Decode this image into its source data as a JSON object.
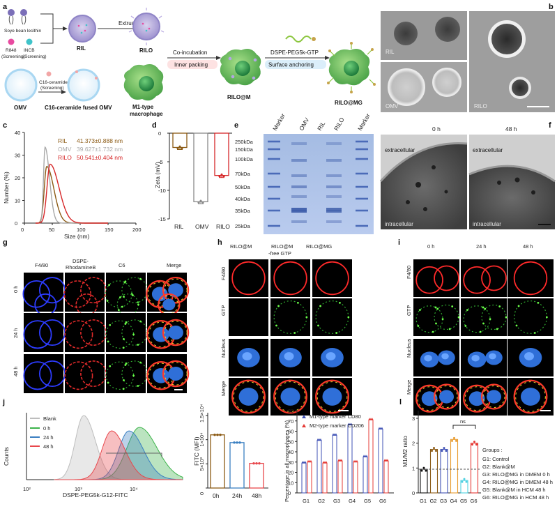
{
  "panels": [
    "a",
    "b",
    "c",
    "d",
    "e",
    "f",
    "g",
    "h",
    "i",
    "j",
    "k",
    "l"
  ],
  "a": {
    "soy": "Soye bean lecithin",
    "r848": "R848",
    "incb": "INCB",
    "screen": "(Screening)",
    "ril": "RIL",
    "extrusion": "Extrusion",
    "rilo": "RILO",
    "omv": "OMV",
    "c16": "C16-ceramide",
    "c16screen": "(Screening)",
    "c16fused": "C16-ceramide fused OMV",
    "coinc": "Co-incubation",
    "inner": "Inner packing",
    "m1": "M1-type",
    "macro": "macrophage",
    "dspe": "DSPE-PEG5k-GTP",
    "surface": "Surface anchoring",
    "rilom": "RILO@M",
    "rilomg": "RILO@MG"
  },
  "b": {
    "ril": "RIL",
    "omv": "OMV",
    "rilo": "RILO"
  },
  "c_chart": {
    "type": "line",
    "title": "",
    "xlabel": "Size (nm)",
    "ylabel": "Number (%)",
    "xlim": [
      0,
      200
    ],
    "ylim": [
      0,
      40
    ],
    "xticks": [
      "0",
      "50",
      "100",
      "150",
      "200"
    ],
    "yticks": [
      "0",
      "10",
      "20",
      "30",
      "40"
    ],
    "series": [
      {
        "name": "RIL",
        "stat": "41.373±0.888 nm",
        "color": "#8B5A14",
        "peak_x": 40,
        "peak_y": 25,
        "sigma": 8
      },
      {
        "name": "OMV",
        "stat": "39.627±1.732 nm",
        "color": "#a8a8a8",
        "peak_x": 37,
        "peak_y": 33.5,
        "sigma": 5
      },
      {
        "name": "RILO",
        "stat": "50.541±0.404 nm",
        "color": "#d62728",
        "peak_x": 46,
        "peak_y": 26,
        "sigma": 10
      }
    ]
  },
  "d_chart": {
    "type": "bar",
    "xlabel": "",
    "ylabel": "Zeta (mV)",
    "ylim": [
      -15,
      0
    ],
    "yticks": [
      "0",
      "-5",
      "-10",
      "-15"
    ],
    "categories": [
      "RIL",
      "OMV",
      "RILO"
    ],
    "values": [
      -2.5,
      -12.0,
      -7.4
    ],
    "colors": [
      "#8B5A14",
      "#8a8a8a",
      "#d62728"
    ]
  },
  "e": {
    "lanes": [
      "Marker",
      "OMV",
      "RIL",
      "RILO",
      "Marker"
    ],
    "kda": [
      "250kDa",
      "150kDa",
      "100kDa",
      "70kDa",
      "50kDa",
      "40kDa",
      "35kDa",
      "25kDa"
    ]
  },
  "f": {
    "t0": "0 h",
    "t48": "48 h",
    "extra": "extracellular",
    "intra": "intracellular"
  },
  "g": {
    "cols": [
      "F4/80",
      "DSPE-",
      "RhodamineB",
      "C6",
      "Merge"
    ],
    "rows": [
      "0 h",
      "24 h",
      "48 h"
    ]
  },
  "h": {
    "cols": [
      "RILO@M",
      "RILO@M",
      "-free GTP",
      "RILO@MG"
    ],
    "rows": [
      "F4/80",
      "GTP",
      "Nucleus",
      "Merge"
    ]
  },
  "i": {
    "cols": [
      "0 h",
      "24 h",
      "48 h"
    ],
    "rows": [
      "F4/80",
      "GTP",
      "Nucleus",
      "Merge"
    ]
  },
  "j_hist": {
    "type": "area",
    "xlabel": "DSPE-PEG5k-G12-FITC",
    "ylabel": "Counts",
    "xticks": [
      "10²",
      "10³",
      "10⁴"
    ],
    "series": [
      {
        "name": "Blank",
        "color": "#bdbdbd"
      },
      {
        "name": "0 h",
        "color": "#3cb34a"
      },
      {
        "name": "24 h",
        "color": "#3a7fc1"
      },
      {
        "name": "48 h",
        "color": "#e8474c"
      }
    ]
  },
  "j_bar": {
    "type": "bar",
    "ylabel": "FITC (MFI)",
    "yticks": [
      "0",
      "5×10³",
      "1×10⁴",
      "1.5×10⁴"
    ],
    "ylim": [
      0,
      15000
    ],
    "categories": [
      "0h",
      "24h",
      "48h"
    ],
    "values": [
      11000,
      9400,
      5100
    ],
    "colors": [
      "#8B5A14",
      "#3a7fc1",
      "#e8474c"
    ]
  },
  "k_chart": {
    "type": "bar",
    "ylabel": "Percentage in all macrophages (%)",
    "ylim": [
      0,
      80
    ],
    "yticks": [
      "0",
      "10",
      "20",
      "30",
      "40",
      "50",
      "60",
      "70",
      "80"
    ],
    "categories": [
      "G1",
      "G2",
      "G3",
      "G4",
      "G5",
      "G6"
    ],
    "series": [
      {
        "name": "M1-type marker CD80",
        "color": "#3f51b5",
        "values": [
          29,
          51,
          56,
          66,
          35,
          62
        ]
      },
      {
        "name": "M2-type marker CD206",
        "color": "#e53935",
        "values": [
          30,
          29,
          31,
          30,
          71,
          31
        ]
      }
    ]
  },
  "l_chart": {
    "type": "bar",
    "ylabel": "M1/M2 ratio",
    "ylim": [
      0,
      3
    ],
    "yticks": [
      "0",
      "1",
      "2",
      "3"
    ],
    "categories": [
      "G1",
      "G2",
      "G3",
      "G4",
      "G5",
      "G6"
    ],
    "values": [
      0.95,
      1.75,
      1.75,
      2.15,
      0.5,
      2.0
    ],
    "colors": [
      "#111111",
      "#8B5A14",
      "#3f51b5",
      "#e89b2f",
      "#4dd0e1",
      "#e53935"
    ],
    "ns": "ns"
  },
  "groups": {
    "title": "Groups :",
    "items": [
      "G1: Control",
      "G2: Blank@M",
      "G3: RILO@MG in DMEM 0 h",
      "G4: RILO@MG in DMEM 48 h",
      "G5: Blank@M in HCM 48 h",
      "G6: RILO@MG in HCM 48 h"
    ]
  }
}
